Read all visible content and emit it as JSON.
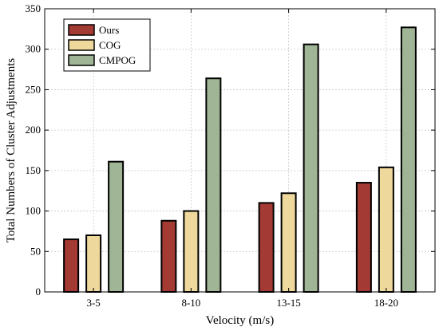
{
  "chart_data": {
    "type": "bar",
    "title": "",
    "xlabel": "Velocity (m/s)",
    "ylabel": "Total Numbers of Cluster Adjustments",
    "categories": [
      "3-5",
      "8-10",
      "13-15",
      "18-20"
    ],
    "series": [
      {
        "name": "Ours",
        "color": "#a33a33",
        "values": [
          65,
          88,
          110,
          135
        ]
      },
      {
        "name": "COG",
        "color": "#eed89c",
        "values": [
          70,
          100,
          122,
          154
        ]
      },
      {
        "name": "CMPOG",
        "color": "#9fb595",
        "values": [
          161,
          264,
          306,
          327
        ]
      }
    ],
    "ylim": [
      0,
      350
    ],
    "yticks": [
      0,
      50,
      100,
      150,
      200,
      250,
      300,
      350
    ],
    "grid": true,
    "legend_position": "top-left"
  }
}
